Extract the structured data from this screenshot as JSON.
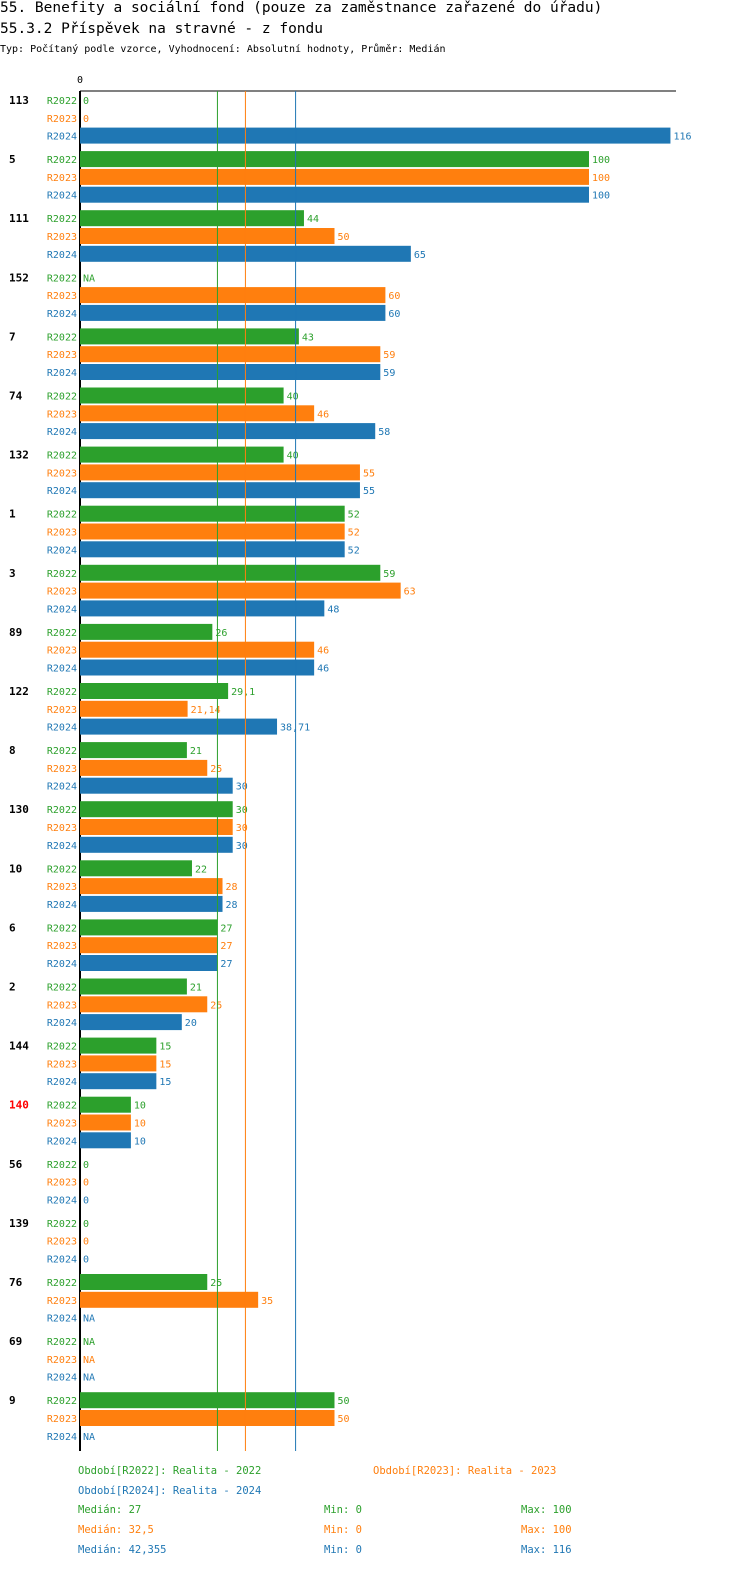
{
  "header": {
    "title": "55. Benefity a sociální fond (pouze za zaměstnance zařazené do úřadu)",
    "subtitle": "55.3.2 Příspěvek na stravné - z fondu",
    "meta": "Typ: Počítaný podle vzorce, Vyhodnocení: Absolutní hodnoty, Průměr: Medián"
  },
  "colors": {
    "R2022": "#2ca02c",
    "R2023": "#ff7f0e",
    "R2024": "#1f77b4",
    "highlight": "#ff0000",
    "axis": "#000000"
  },
  "chart_data": {
    "type": "bar",
    "orientation": "horizontal",
    "axis_zero_label": "0",
    "xlim": [
      0,
      130
    ],
    "series_names": [
      "R2022",
      "R2023",
      "R2024"
    ],
    "groups": [
      {
        "id": "113",
        "values": [
          "0",
          "0",
          "116"
        ]
      },
      {
        "id": "5",
        "values": [
          "100",
          "100",
          "100"
        ]
      },
      {
        "id": "111",
        "values": [
          "44",
          "50",
          "65"
        ]
      },
      {
        "id": "152",
        "values": [
          "NA",
          "60",
          "60"
        ]
      },
      {
        "id": "7",
        "values": [
          "43",
          "59",
          "59"
        ]
      },
      {
        "id": "74",
        "values": [
          "40",
          "46",
          "58"
        ]
      },
      {
        "id": "132",
        "values": [
          "40",
          "55",
          "55"
        ]
      },
      {
        "id": "1",
        "values": [
          "52",
          "52",
          "52"
        ]
      },
      {
        "id": "3",
        "values": [
          "59",
          "63",
          "48"
        ]
      },
      {
        "id": "89",
        "values": [
          "26",
          "46",
          "46"
        ]
      },
      {
        "id": "122",
        "values": [
          "29,1",
          "21,14",
          "38,71"
        ]
      },
      {
        "id": "8",
        "values": [
          "21",
          "25",
          "30"
        ]
      },
      {
        "id": "130",
        "values": [
          "30",
          "30",
          "30"
        ]
      },
      {
        "id": "10",
        "values": [
          "22",
          "28",
          "28"
        ]
      },
      {
        "id": "6",
        "values": [
          "27",
          "27",
          "27"
        ]
      },
      {
        "id": "2",
        "values": [
          "21",
          "25",
          "20"
        ]
      },
      {
        "id": "144",
        "values": [
          "15",
          "15",
          "15"
        ]
      },
      {
        "id": "140",
        "values": [
          "10",
          "10",
          "10"
        ],
        "highlight": true
      },
      {
        "id": "56",
        "values": [
          "0",
          "0",
          "0"
        ]
      },
      {
        "id": "139",
        "values": [
          "0",
          "0",
          "0"
        ]
      },
      {
        "id": "76",
        "values": [
          "25",
          "35",
          "NA"
        ]
      },
      {
        "id": "69",
        "values": [
          "NA",
          "NA",
          "NA"
        ]
      },
      {
        "id": "9",
        "values": [
          "50",
          "50",
          "NA"
        ]
      }
    ],
    "medians": {
      "R2022": 27,
      "R2023": 32.5,
      "R2024": 42.355
    }
  },
  "legend": {
    "items": [
      "Období[R2022]: Realita - 2022",
      "Období[R2023]: Realita - 2023",
      "Období[R2024]: Realita - 2024"
    ],
    "stats": [
      {
        "median": "Medián: 27",
        "min": "Min: 0",
        "max": "Max: 100"
      },
      {
        "median": "Medián: 32,5",
        "min": "Min: 0",
        "max": "Max: 100"
      },
      {
        "median": "Medián: 42,355",
        "min": "Min: 0",
        "max": "Max: 116"
      }
    ]
  }
}
